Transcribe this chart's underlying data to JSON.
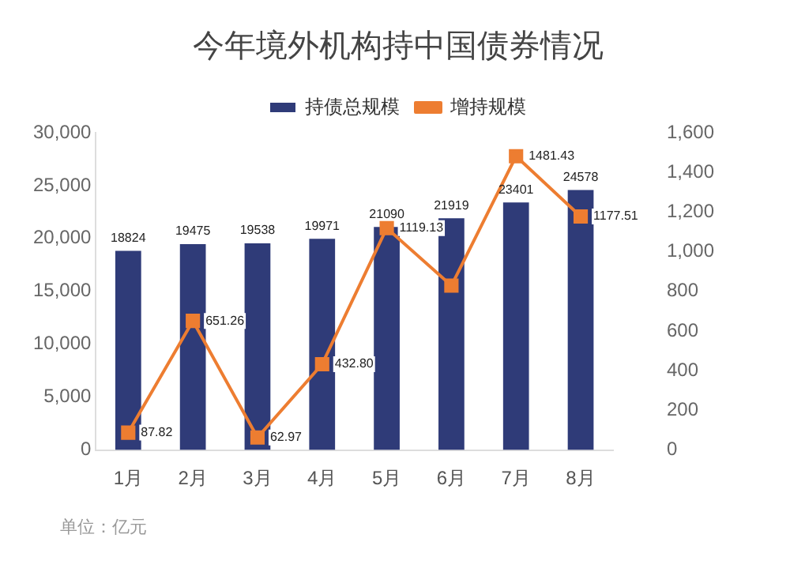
{
  "chart_data": {
    "type": "bar",
    "title": "今年境外机构持中国债券情况",
    "categories": [
      "1月",
      "2月",
      "3月",
      "4月",
      "5月",
      "6月",
      "7月",
      "8月"
    ],
    "series": [
      {
        "name": "持债总规模",
        "color": "#2f3b78",
        "values": [
          18824,
          19475,
          19538,
          19971,
          21090,
          21919,
          23401,
          24578
        ],
        "value_labels": [
          "18824",
          "19475",
          "19538",
          "19971",
          "21090",
          "21919",
          "23401",
          "24578"
        ]
      },
      {
        "name": "增持规模",
        "type": "line",
        "axis": "y2",
        "color": "#ed7d31",
        "marker": "square",
        "values": [
          87.82,
          651.26,
          62.97,
          432.8,
          1119.13,
          829,
          1481.43,
          1177.51
        ],
        "value_labels": [
          "87.82",
          "651.26",
          "62.97",
          "432.80",
          "1119.13",
          null,
          "1481.43",
          "1177.51"
        ]
      }
    ],
    "ylim": [
      0,
      30000
    ],
    "yticks": [
      0,
      {
        "value": 5000,
        "label": "5,000"
      },
      {
        "value": 10000,
        "label": "10,000"
      },
      {
        "value": 15000,
        "label": "15,000"
      },
      {
        "value": 20000,
        "label": "20,000"
      },
      {
        "value": 25000,
        "label": "25,000"
      },
      {
        "value": 30000,
        "label": "30,000"
      }
    ],
    "y2lim": [
      0,
      1600
    ],
    "y2ticks": [
      0,
      200,
      400,
      600,
      800,
      {
        "value": 1000,
        "label": "1,000"
      },
      {
        "value": 1200,
        "label": "1,200"
      },
      {
        "value": 1400,
        "label": "1,400"
      },
      {
        "value": 1600,
        "label": "1,600"
      }
    ],
    "legend": "top",
    "grid": false,
    "annotations": [
      "单位：亿元"
    ]
  }
}
